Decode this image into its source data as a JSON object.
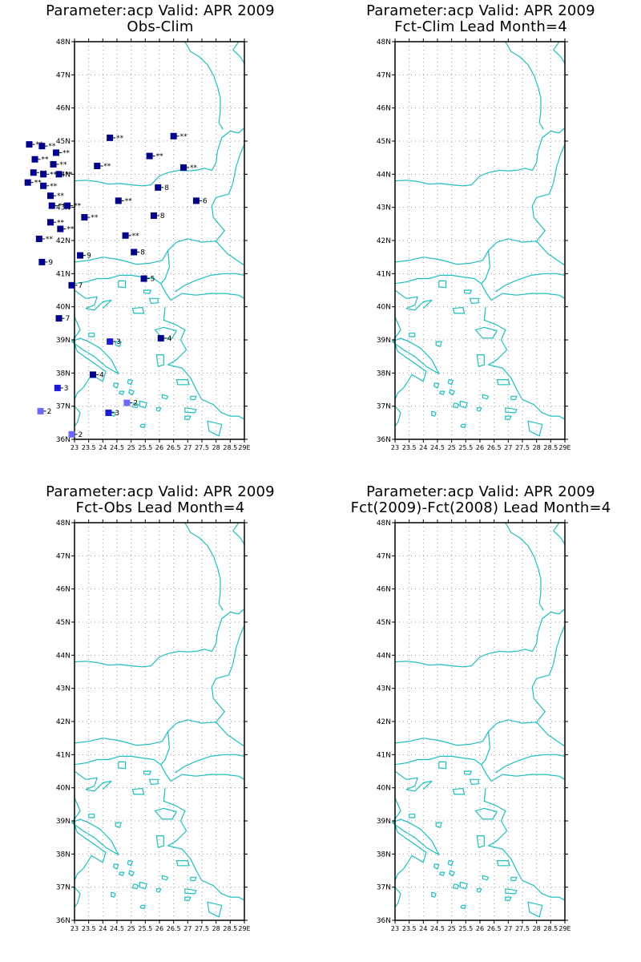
{
  "colors": {
    "coast": "#1fbfbf",
    "frame": "#000000",
    "grid": "#999999",
    "text": "#000000",
    "station_strong": "#00008b",
    "station_mid": "#1c1cd8",
    "station_light": "#6a6aff"
  },
  "map": {
    "lat_range": [
      36,
      48
    ],
    "lon_range": [
      23,
      29
    ],
    "lat_ticks": [
      "36N",
      "37N",
      "38N",
      "39N",
      "40N",
      "41N",
      "42N",
      "43N",
      "44N",
      "45N",
      "46N",
      "47N",
      "48N"
    ],
    "lon_ticks": [
      "23",
      "23.5",
      "24",
      "24.5",
      "25",
      "25.5",
      "26",
      "26.5",
      "27",
      "27.5",
      "28",
      "28.5",
      "29E"
    ]
  },
  "panels": [
    {
      "line1": "Parameter:acp Valid: APR 2009",
      "line2": "Obs-Clim",
      "has_stations": true
    },
    {
      "line1": "Parameter:acp Valid: APR 2009",
      "line2": "Fct-Clim Lead Month=4",
      "has_stations": false
    },
    {
      "line1": "Parameter:acp Valid: APR 2009",
      "line2": "Fct-Obs Lead Month=4",
      "has_stations": false
    },
    {
      "line1": "Parameter:acp Valid: APR 2009",
      "line2": "Fct(2009)-Fct(2008) Lead Month=4",
      "has_stations": false
    }
  ],
  "stations": [
    {
      "lon": 21.4,
      "lat": 44.9,
      "label": "**",
      "shade": "strong"
    },
    {
      "lon": 21.6,
      "lat": 44.45,
      "label": "**",
      "shade": "strong"
    },
    {
      "lon": 21.85,
      "lat": 44.85,
      "label": "**",
      "shade": "strong"
    },
    {
      "lon": 21.55,
      "lat": 44.05,
      "label": "**",
      "shade": "strong"
    },
    {
      "lon": 21.35,
      "lat": 43.75,
      "label": "**",
      "shade": "strong"
    },
    {
      "lon": 21.9,
      "lat": 44.0,
      "label": "**",
      "shade": "strong"
    },
    {
      "lon": 21.9,
      "lat": 43.65,
      "label": "**",
      "shade": "strong"
    },
    {
      "lon": 22.35,
      "lat": 44.65,
      "label": "**",
      "shade": "strong"
    },
    {
      "lon": 22.25,
      "lat": 44.3,
      "label": "**",
      "shade": "strong"
    },
    {
      "lon": 22.45,
      "lat": 44.0,
      "label": "**",
      "shade": "strong"
    },
    {
      "lon": 22.15,
      "lat": 43.35,
      "label": "**",
      "shade": "strong"
    },
    {
      "lon": 22.2,
      "lat": 43.05,
      "label": "**",
      "shade": "strong"
    },
    {
      "lon": 22.75,
      "lat": 43.05,
      "label": "**",
      "shade": "strong"
    },
    {
      "lon": 22.15,
      "lat": 42.55,
      "label": "**",
      "shade": "strong"
    },
    {
      "lon": 22.5,
      "lat": 42.35,
      "label": "**",
      "shade": "strong"
    },
    {
      "lon": 21.75,
      "lat": 42.05,
      "label": "**",
      "shade": "strong"
    },
    {
      "lon": 21.85,
      "lat": 41.35,
      "label": "9",
      "shade": "strong"
    },
    {
      "lon": 23.2,
      "lat": 41.55,
      "label": "9",
      "shade": "strong"
    },
    {
      "lon": 23.35,
      "lat": 42.7,
      "label": "**",
      "shade": "strong"
    },
    {
      "lon": 23.8,
      "lat": 44.25,
      "label": "**",
      "shade": "strong"
    },
    {
      "lon": 24.25,
      "lat": 45.1,
      "label": "**",
      "shade": "strong"
    },
    {
      "lon": 24.55,
      "lat": 43.2,
      "label": "**",
      "shade": "strong"
    },
    {
      "lon": 24.8,
      "lat": 42.15,
      "label": "**",
      "shade": "strong"
    },
    {
      "lon": 25.1,
      "lat": 41.65,
      "label": "8",
      "shade": "strong"
    },
    {
      "lon": 25.65,
      "lat": 44.55,
      "label": "**",
      "shade": "strong"
    },
    {
      "lon": 25.95,
      "lat": 43.6,
      "label": "8",
      "shade": "strong"
    },
    {
      "lon": 25.8,
      "lat": 42.75,
      "label": "8",
      "shade": "strong"
    },
    {
      "lon": 26.5,
      "lat": 45.15,
      "label": "**",
      "shade": "strong"
    },
    {
      "lon": 26.85,
      "lat": 44.2,
      "label": "**",
      "shade": "strong"
    },
    {
      "lon": 27.3,
      "lat": 43.2,
      "label": "6",
      "shade": "strong"
    },
    {
      "lon": 25.45,
      "lat": 40.85,
      "label": "5",
      "shade": "strong"
    },
    {
      "lon": 22.9,
      "lat": 40.65,
      "label": "7",
      "shade": "strong"
    },
    {
      "lon": 22.45,
      "lat": 39.65,
      "label": "7",
      "shade": "strong"
    },
    {
      "lon": 26.05,
      "lat": 39.05,
      "label": "4",
      "shade": "strong"
    },
    {
      "lon": 23.65,
      "lat": 37.95,
      "label": "4",
      "shade": "strong"
    },
    {
      "lon": 24.25,
      "lat": 38.95,
      "label": "3",
      "shade": "mid"
    },
    {
      "lon": 22.4,
      "lat": 37.55,
      "label": "3",
      "shade": "mid"
    },
    {
      "lon": 24.2,
      "lat": 36.8,
      "label": "3",
      "shade": "mid"
    },
    {
      "lon": 24.85,
      "lat": 37.1,
      "label": "2",
      "shade": "light"
    },
    {
      "lon": 21.8,
      "lat": 36.85,
      "label": "2",
      "shade": "light"
    },
    {
      "lon": 22.9,
      "lat": 36.15,
      "label": "2",
      "shade": "light"
    }
  ]
}
